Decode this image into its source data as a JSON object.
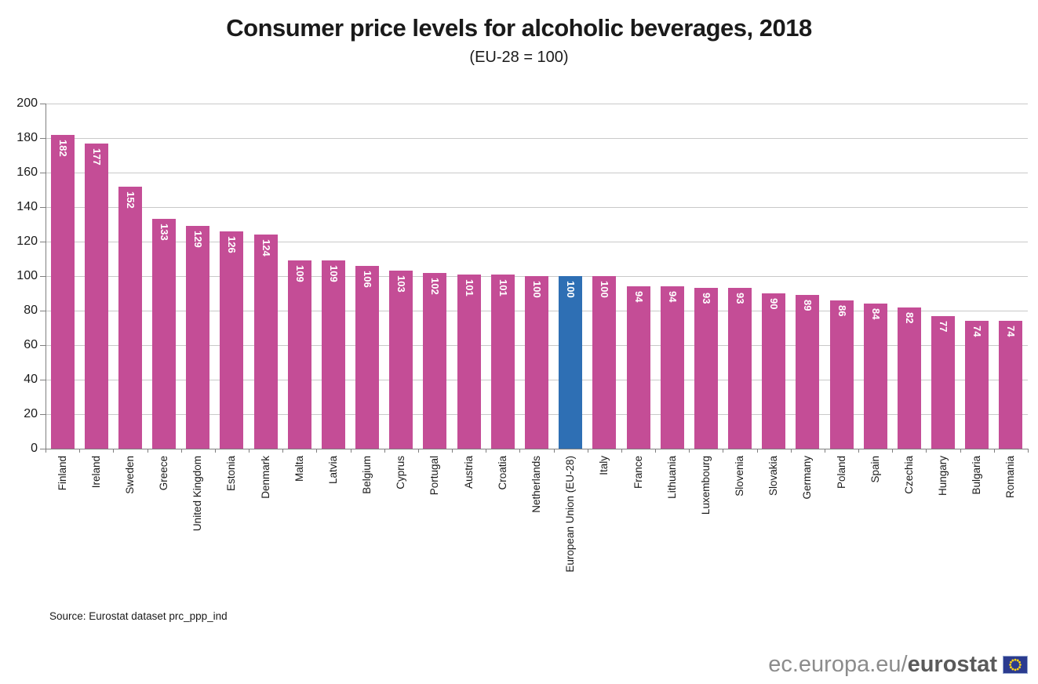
{
  "title": "Consumer price levels for alcoholic beverages, 2018",
  "subtitle": "(EU-28 = 100)",
  "source": "Source: Eurostat dataset prc_ppp_ind",
  "footer": {
    "url_prefix": "ec.europa.eu/",
    "brand": "eurostat",
    "flag_icon": "eu-flag-icon"
  },
  "colors": {
    "bar": "#c44d96",
    "eu_bar": "#2e6fb4",
    "grid": "#c9c9c9",
    "axis": "#7f7f7f",
    "value_label": "#ffffff",
    "flag_blue": "#2b3b8f",
    "flag_star": "#ffd617"
  },
  "chart_data": {
    "type": "bar",
    "title": "Consumer price levels for alcoholic beverages, 2018",
    "subtitle": "(EU-28 = 100)",
    "categories": [
      "Finland",
      "Ireland",
      "Sweden",
      "Greece",
      "United Kingdom",
      "Estonia",
      "Denmark",
      "Malta",
      "Latvia",
      "Belgium",
      "Cyprus",
      "Portugal",
      "Austria",
      "Croatia",
      "Netherlands",
      "European Union (EU-28)",
      "Italy",
      "France",
      "Lithuania",
      "Luxembourg",
      "Slovenia",
      "Slovakia",
      "Germany",
      "Poland",
      "Spain",
      "Czechia",
      "Hungary",
      "Bulgaria",
      "Romania"
    ],
    "values": [
      182,
      177,
      152,
      133,
      129,
      126,
      124,
      109,
      109,
      106,
      103,
      102,
      101,
      101,
      100,
      100,
      100,
      94,
      94,
      93,
      93,
      90,
      89,
      86,
      84,
      82,
      77,
      74,
      74
    ],
    "highlight_category": "European Union (EU-28)",
    "xlabel": "",
    "ylabel": "",
    "ylim": [
      0,
      200
    ],
    "ytick_step": 20,
    "grid": true,
    "legend": "none",
    "value_labels": "inside-top, rotated vertical, white bold"
  }
}
